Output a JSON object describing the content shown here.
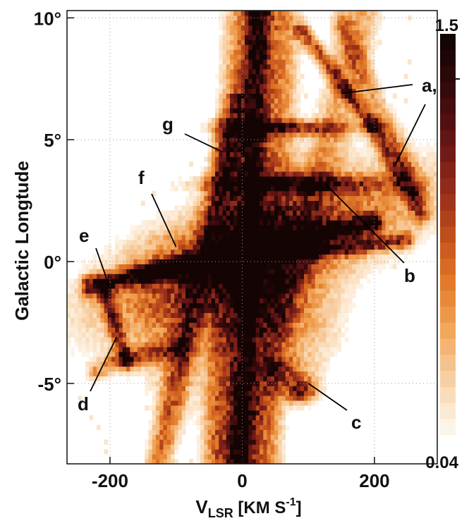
{
  "chart_data": {
    "type": "heatmap",
    "title": "",
    "xlabel": "V",
    "xlabel_sub": "LSR",
    "xlabel_units_prefix": " [KM S",
    "xlabel_units_sup": "-1",
    "xlabel_units_suffix": "]",
    "ylabel": "Galactic Longtude",
    "xlim": [
      -265,
      295
    ],
    "ylim": [
      -8.3,
      10.3
    ],
    "x_ticks": [
      {
        "value": -200,
        "label": "-200"
      },
      {
        "value": 0,
        "label": "0"
      },
      {
        "value": 200,
        "label": "200"
      }
    ],
    "y_ticks": [
      {
        "value": 10,
        "label": "10°"
      },
      {
        "value": 5,
        "label": "5°"
      },
      {
        "value": 0,
        "label": "0°"
      },
      {
        "value": -5,
        "label": "-5°"
      }
    ],
    "grid": true,
    "colorbar": {
      "min": 0.04,
      "max": 1.5,
      "min_label": "0.04",
      "max_label": "1.5",
      "colors": [
        "#ffffff",
        "#fbe3c6",
        "#f6c28c",
        "#f0a050",
        "#e27a2a",
        "#c6551c",
        "#a0341a",
        "#7a1e17",
        "#521012",
        "#2e0909",
        "#150404"
      ]
    },
    "features": [
      {
        "label": "a,",
        "x": 150,
        "y": 6.9
      },
      {
        "label": "a,",
        "x": 232,
        "y": 4.0
      },
      {
        "label": "b",
        "x": 125,
        "y": 3.2
      },
      {
        "label": "c",
        "x": 100,
        "y": -5.0
      },
      {
        "label": "d",
        "x": -190,
        "y": -3.1
      },
      {
        "label": "e",
        "x": -200,
        "y": -1.1
      },
      {
        "label": "f",
        "x": -100,
        "y": 0.6
      },
      {
        "label": "g",
        "x": -30,
        "y": 4.5
      }
    ]
  }
}
